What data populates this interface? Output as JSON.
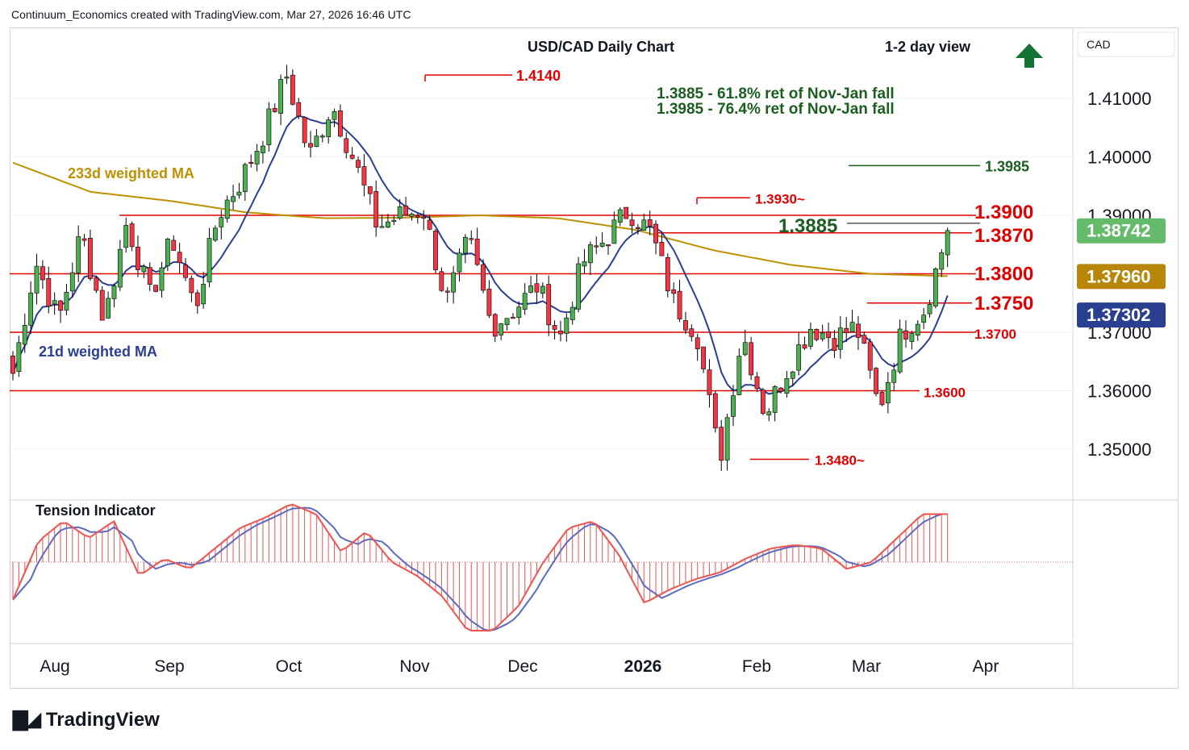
{
  "header": {
    "attribution": "Continuum_Economics created with TradingView.com, Mar 27, 2026 16:46 UTC"
  },
  "footer": {
    "brand": "TradingView"
  },
  "colors": {
    "up": "#4caf50",
    "down": "#f23645",
    "level": "#e00000",
    "annot_green": "#1b5e20",
    "ma233": "#bf9000",
    "ma21": "#2a3f8f",
    "tension_fast": "#ef5350",
    "tension_slow": "#5c6bc0",
    "arrow": "#137333",
    "label_last": "#66bb6a",
    "label_ma233": "#b8860b",
    "label_ma21": "#2a3f8f"
  },
  "chart_data": {
    "type": "candlestick",
    "title": "USD/CAD Daily Chart",
    "view": "1-2 day view",
    "view_icon": "up-arrow-icon",
    "currency": "CAD",
    "y_axis": {
      "ticks": [
        1.41,
        1.4,
        1.39,
        1.37,
        1.36,
        1.35
      ],
      "tick_labels": [
        "1.41000",
        "1.40000",
        "1.39000",
        "1.37000",
        "1.36000",
        "1.35000"
      ],
      "range": [
        1.3415,
        1.4265
      ]
    },
    "x_axis": {
      "labels": [
        "Aug",
        "Sep",
        "Oct",
        "Nov",
        "Dec",
        "2026",
        "Feb",
        "Mar",
        "Apr"
      ],
      "bold": [
        "2026"
      ]
    },
    "price_labels": [
      {
        "text": "1.38742",
        "value": 1.38742,
        "kind": "last"
      },
      {
        "text": "1.37960",
        "value": 1.3796,
        "kind": "ma233"
      },
      {
        "text": "1.37302",
        "value": 1.37302,
        "kind": "ma21"
      }
    ],
    "levels": [
      {
        "value": 1.39,
        "label": "1.3900"
      },
      {
        "value": 1.387,
        "label": "1.3870"
      },
      {
        "value": 1.38,
        "label": "1.3800"
      },
      {
        "value": 1.375,
        "label": "1.3750"
      },
      {
        "value": 1.37,
        "label": "1.3700"
      },
      {
        "value": 1.36,
        "label": "1.3600"
      }
    ],
    "markers": [
      {
        "value": 1.414,
        "label": "1.4140"
      },
      {
        "value": 1.393,
        "label": "1.3930~"
      },
      {
        "value": 1.348,
        "label": "1.3480~"
      }
    ],
    "targets": [
      {
        "value": 1.3885,
        "label": "1.3885"
      },
      {
        "value": 1.3985,
        "label": "1.3985"
      }
    ],
    "annotations": [
      "1.3885 - 61.8% ret of Nov-Jan fall",
      "1.3985 - 76.4% ret of Nov-Jan fall"
    ],
    "series_labels": {
      "ma233": "233d weighted MA",
      "ma21": "21d weighted MA"
    },
    "indicator": {
      "name": "Tension Indicator"
    },
    "key_points": [
      [
        1.363,
        1.382,
        1.372,
        1.387,
        1.372,
        1.389,
        1.376,
        1.386,
        1.374,
        1.39,
        1.396,
        1.404,
        1.414,
        1.4,
        1.409,
        1.399,
        1.388,
        1.39,
        1.391,
        1.375,
        1.386,
        1.371,
        1.374,
        1.378,
        1.369,
        1.382,
        1.386,
        1.391,
        1.387,
        1.375,
        1.37,
        1.348,
        1.37,
        1.356,
        1.364,
        1.371,
        1.369,
        1.371,
        1.357,
        1.37,
        1.374,
        1.3874
      ],
      [
        -0.55,
        0.3,
        0.6,
        0.35,
        0.6,
        -0.2,
        0.05,
        -0.1,
        0.2,
        0.5,
        0.65,
        0.85,
        0.7,
        0.15,
        0.45,
        0.0,
        -0.2,
        -0.5,
        -1.0,
        -1.0,
        -0.65,
        0.0,
        0.5,
        0.6,
        0.1,
        -0.6,
        -0.4,
        -0.25,
        -0.15,
        0.05,
        0.2,
        0.25,
        0.2,
        -0.1,
        0.0,
        0.35,
        0.7,
        0.7
      ]
    ]
  }
}
